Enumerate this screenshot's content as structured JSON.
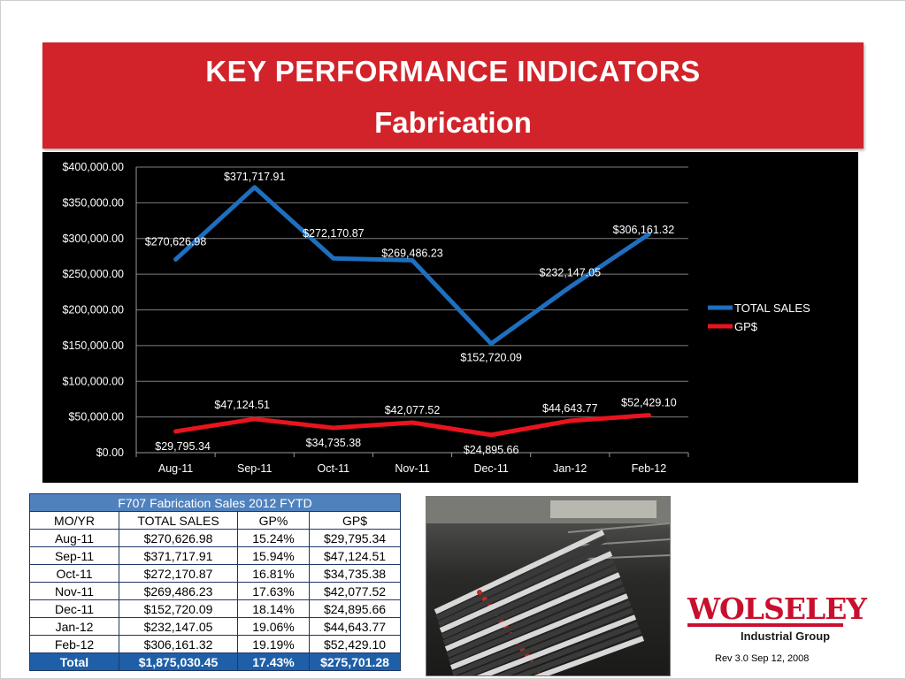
{
  "title": "KEY PERFORMANCE INDICATORS",
  "subtitle": "Fabrication",
  "chart_data": {
    "type": "line",
    "categories": [
      "Aug-11",
      "Sep-11",
      "Oct-11",
      "Nov-11",
      "Dec-11",
      "Jan-12",
      "Feb-12"
    ],
    "ylim": [
      0,
      400000
    ],
    "yticks": [
      0,
      50000,
      100000,
      150000,
      200000,
      250000,
      300000,
      350000,
      400000
    ],
    "ytick_labels": [
      "$0.00",
      "$50,000.00",
      "$100,000.00",
      "$150,000.00",
      "$200,000.00",
      "$250,000.00",
      "$300,000.00",
      "$350,000.00",
      "$400,000.00"
    ],
    "grid": true,
    "legend_position": "right",
    "background": "#000000",
    "series": [
      {
        "name": "TOTAL SALES",
        "color": "#1e6fbf",
        "values": [
          270626.98,
          371717.91,
          272170.87,
          269486.23,
          152720.09,
          232147.05,
          306161.32
        ],
        "labels": [
          "$270,626.98",
          "$371,717.91",
          "$272,170.87",
          "$269,486.23",
          "$152,720.09",
          "$232,147.05",
          "$306,161.32"
        ]
      },
      {
        "name": "GP$",
        "color": "#e8141e",
        "values": [
          29795.34,
          47124.51,
          34735.38,
          42077.52,
          24895.66,
          44643.77,
          52429.1
        ],
        "labels": [
          "$29,795.34",
          "$47,124.51",
          "$34,735.38",
          "$42,077.52",
          "$24,895.66",
          "$44,643.77",
          "$52,429.10"
        ]
      }
    ]
  },
  "table": {
    "caption": "F707 Fabrication Sales 2012 FYTD",
    "headers": [
      "MO/YR",
      "TOTAL SALES",
      "GP%",
      "GP$"
    ],
    "rows": [
      [
        "Aug-11",
        "$270,626.98",
        "15.24%",
        "$29,795.34"
      ],
      [
        "Sep-11",
        "$371,717.91",
        "15.94%",
        "$47,124.51"
      ],
      [
        "Oct-11",
        "$272,170.87",
        "16.81%",
        "$34,735.38"
      ],
      [
        "Nov-11",
        "$269,486.23",
        "17.63%",
        "$42,077.52"
      ],
      [
        "Dec-11",
        "$152,720.09",
        "18.14%",
        "$24,895.66"
      ],
      [
        "Jan-12",
        "$232,147.05",
        "19.06%",
        "$44,643.77"
      ],
      [
        "Feb-12",
        "$306,161.32",
        "19.19%",
        "$52,429.10"
      ]
    ],
    "total": [
      "Total",
      "$1,875,030.45",
      "17.43%",
      "$275,701.28"
    ]
  },
  "logo": {
    "word": "WOLSELEY",
    "sub": "Industrial Group"
  },
  "revision": "Rev 3.0 Sep 12, 2008"
}
